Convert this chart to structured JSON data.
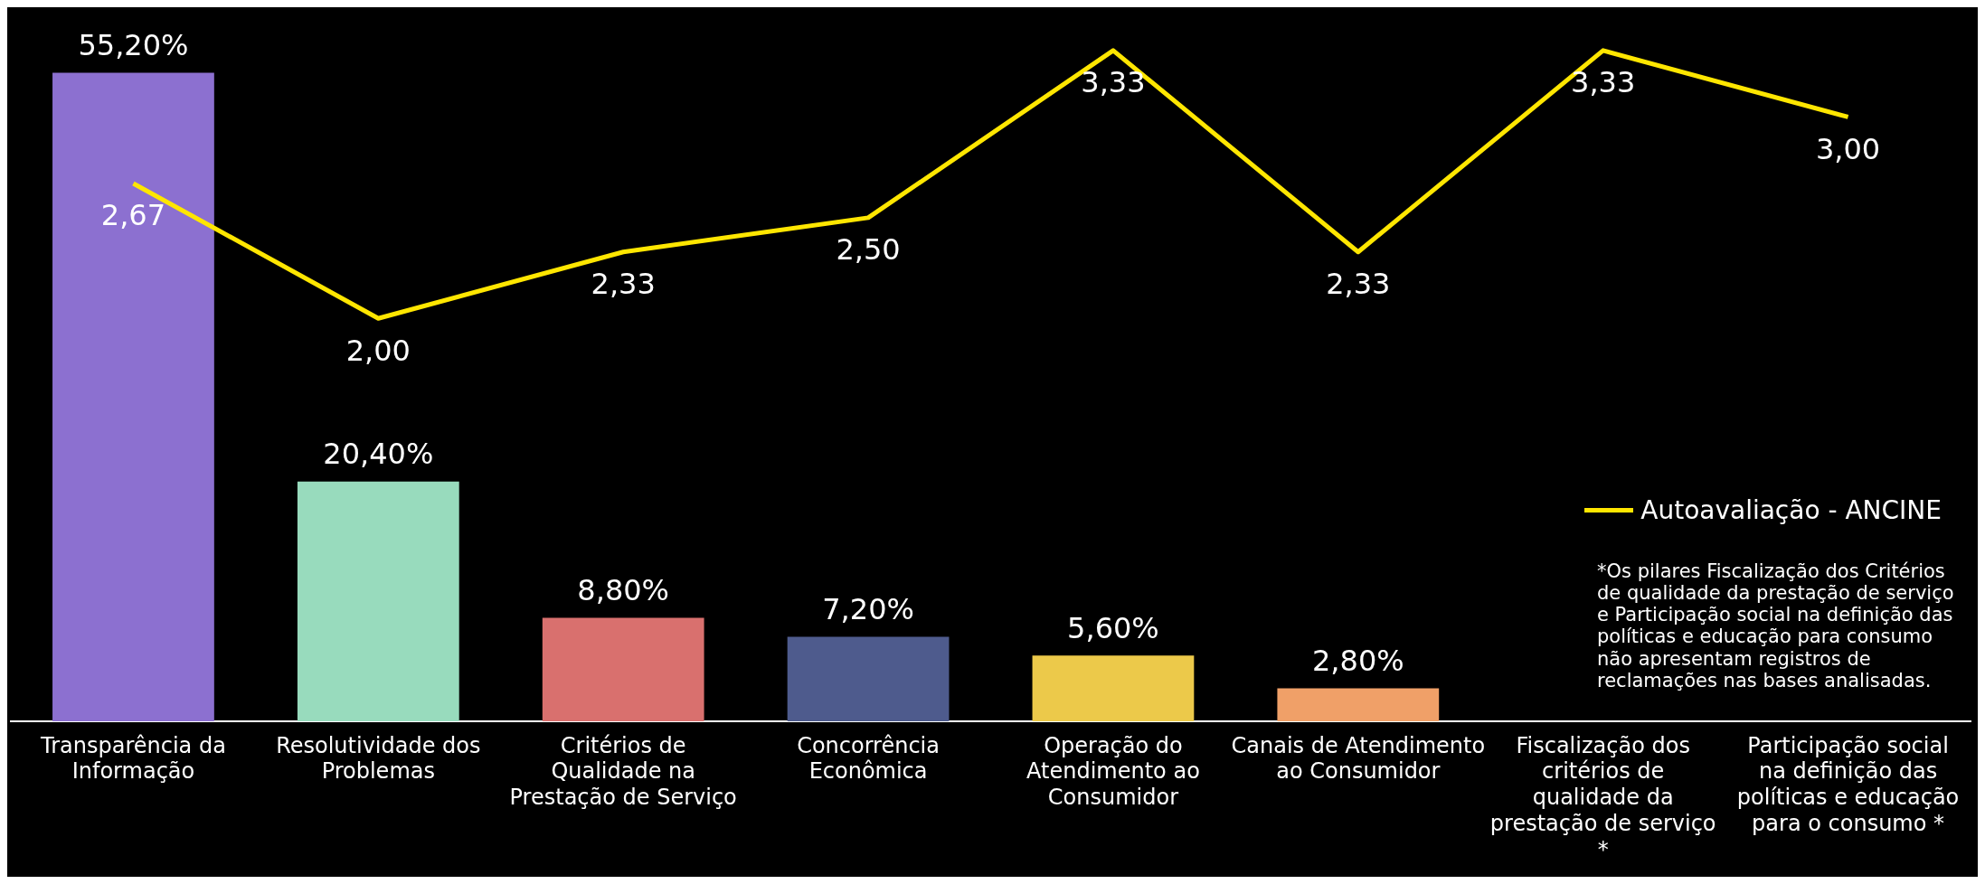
{
  "chart_data": {
    "type": "bar",
    "categories": [
      "Transparência da Informação",
      "Resolutividade dos Problemas",
      "Critérios de Qualidade na Prestação de Serviço",
      "Concorrência Econômica",
      "Operação do Atendimento ao Consumidor",
      "Canais de Atendimento ao Consumidor",
      "Fiscalização dos critérios de qualidade da prestação de serviço *",
      "Participação social na definição das políticas e educação para o consumo *"
    ],
    "series": [
      {
        "colors": [
          "#8c70d0",
          "#98dbbd",
          "#d9706e",
          "#4e5b8d",
          "#ecc94a",
          "#f0a068",
          null,
          null
        ],
        "values": [
          55.2,
          20.4,
          8.8,
          7.2,
          5.6,
          2.8,
          null,
          null
        ],
        "value_labels": [
          "55,20%",
          "20,40%",
          "8,80%",
          "7,20%",
          "5,60%",
          "2,80%",
          null,
          null
        ]
      },
      {
        "type": "line",
        "axis": "y2",
        "name": "Autoavaliação - ANCINE",
        "color": "#ffe600",
        "values": [
          2.67,
          2.0,
          2.33,
          2.5,
          3.33,
          2.33,
          3.33,
          3.0
        ],
        "value_labels": [
          "2,67",
          "2,00",
          "2,33",
          "2,50",
          "3,33",
          "2,33",
          "3,33",
          "3,00"
        ]
      }
    ],
    "grid": false,
    "legend": "right",
    "marker": "none",
    "annotations": [
      "*Os pilares Fiscalização dos Critérios de qualidade da prestação de serviço e Participação social na definição das políticas e educação para consumo não apresentam registros de reclamações nas bases analisadas."
    ]
  }
}
